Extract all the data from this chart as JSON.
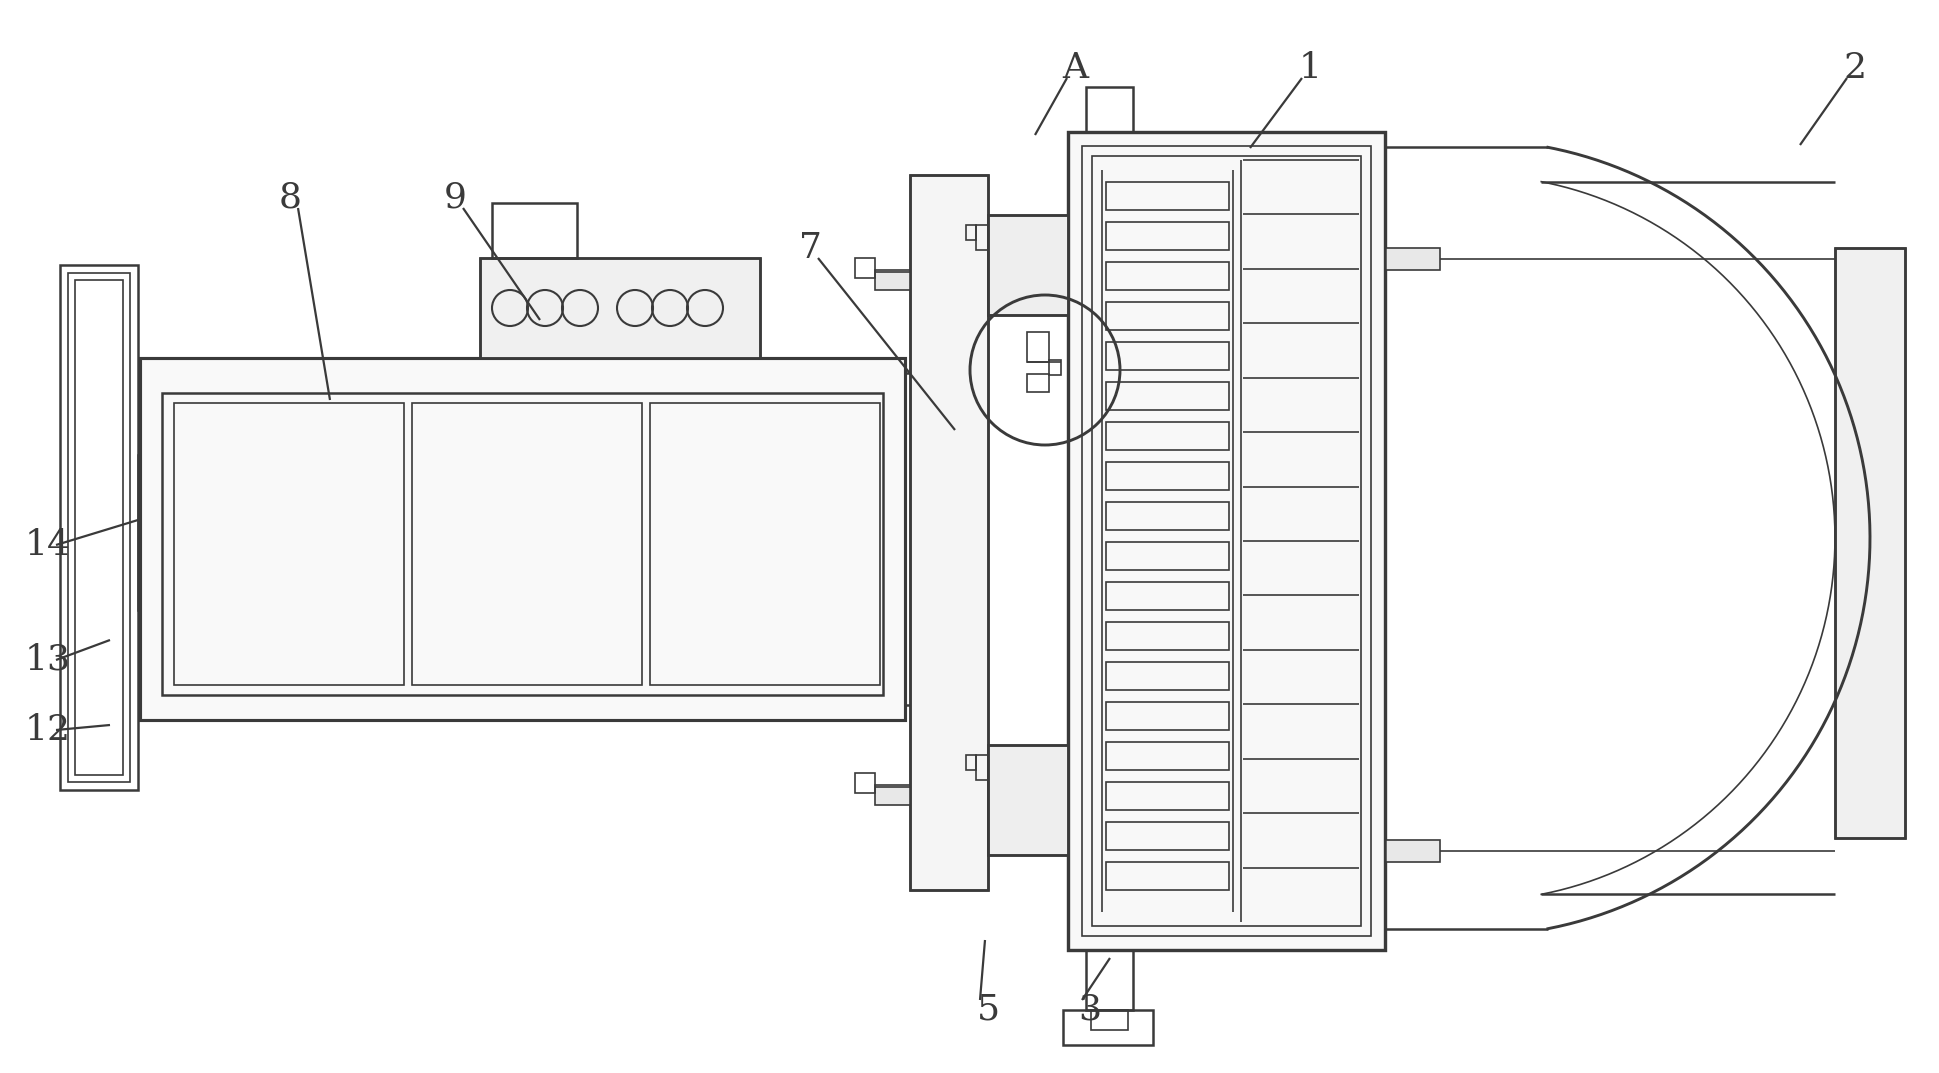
{
  "bg_color": "#ffffff",
  "line_color": "#3a3a3a",
  "lw": 1.8,
  "thin_lw": 1.2,
  "label_fs": 26
}
